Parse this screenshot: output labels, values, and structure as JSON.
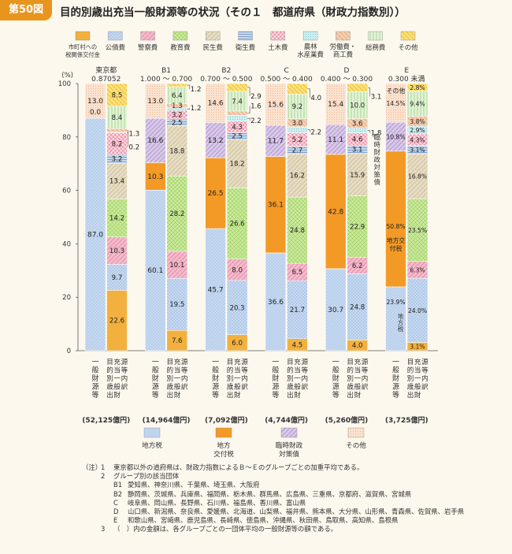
{
  "header": {
    "figure_no": "第50図",
    "title": "目的別歳出充当一般財源等の状況（その１　都道府県（財政力指数別））"
  },
  "colors": {
    "tax_distribution": "#f2b13f",
    "debt": "#c6d9f0",
    "police": "#f4bccd",
    "education": "#b6de7c",
    "welfare": "#ddd3b8",
    "health": "#b8cde4",
    "civil": "#f7c7d2",
    "agri": "#bfe7ea",
    "labor": "#f2bf9b",
    "general": "#d9edc8",
    "other": "#f5cf3f",
    "local_tax": "#c6d9f0",
    "local_grant": "#f39a26",
    "temp_bond": "#c9b4dd",
    "other_rev": "#f9d6bb"
  },
  "chart_data": {
    "type": "bar",
    "stacked": true,
    "ylabel": "(%)",
    "ylim": [
      0,
      100
    ],
    "yticks": [
      "0",
      "20",
      "40",
      "60",
      "80",
      "100"
    ],
    "groups": [
      {
        "name": "東京都",
        "sub": "0.87052",
        "total": "(52,125億円)",
        "revenue": [
          87.0,
          0,
          0.0,
          13.0
        ],
        "revenue_labels": [
          "87.0",
          "",
          "0.0",
          "13.0"
        ],
        "expenditure": [
          22.6,
          9.7,
          10.3,
          14.2,
          13.4,
          3.2,
          8.2,
          0.2,
          1.3,
          8.4,
          8.5
        ],
        "expenditure_labels": [
          "22.6",
          "9.7",
          "10.3",
          "14.2",
          "13.4",
          "3.2",
          "8.2",
          "0.2",
          "1.3",
          "8.4",
          "8.5"
        ]
      },
      {
        "name": "B1",
        "sub": "1.000 ～ 0.700",
        "total": "(14,964億円)",
        "revenue": [
          60.1,
          10.3,
          16.6,
          13.0
        ],
        "revenue_labels": [
          "60.1",
          "10.3",
          "16.6",
          "13.0"
        ],
        "expenditure": [
          7.6,
          19.5,
          10.1,
          28.2,
          18.8,
          2.5,
          3.2,
          1.2,
          1.3,
          6.4,
          1.2
        ],
        "expenditure_labels": [
          "7.6",
          "19.5",
          "10.1",
          "28.2",
          "18.8",
          "2.5",
          "3.2",
          "1.2",
          "1.3",
          "6.4",
          "1.2"
        ]
      },
      {
        "name": "B2",
        "sub": "0.700 ～ 0.500",
        "total": "(7,092億円)",
        "revenue": [
          45.7,
          26.5,
          13.2,
          14.6
        ],
        "revenue_labels": [
          "45.7",
          "26.5",
          "13.2",
          "14.6"
        ],
        "expenditure": [
          6.0,
          20.3,
          8.0,
          26.6,
          18.2,
          2.5,
          4.3,
          2.2,
          1.6,
          7.4,
          2.9
        ],
        "expenditure_labels": [
          "6.0",
          "20.3",
          "8.0",
          "26.6",
          "18.2",
          "2.5",
          "4.3",
          "2.2",
          "1.6",
          "7.4",
          "2.9"
        ]
      },
      {
        "name": "C",
        "sub": "0.500 ～ 0.400",
        "total": "(4,744億円)",
        "revenue": [
          36.6,
          36.1,
          11.7,
          15.6
        ],
        "revenue_labels": [
          "36.6",
          "36.1",
          "11.7",
          "15.6"
        ],
        "expenditure": [
          4.5,
          21.7,
          6.5,
          24.8,
          16.2,
          2.7,
          5.2,
          2.2,
          3.0,
          9.2,
          4.0
        ],
        "expenditure_labels": [
          "4.5",
          "21.7",
          "6.5",
          "24.8",
          "16.2",
          "2.7",
          "5.2",
          "2.2",
          "3.0",
          "9.2",
          "4.0"
        ]
      },
      {
        "name": "D",
        "sub": "0.400 ～ 0.300",
        "total": "(5,260億円)",
        "revenue": [
          30.7,
          42.8,
          11.1,
          15.4
        ],
        "revenue_labels": [
          "30.7",
          "42.8",
          "11.1",
          "15.4"
        ],
        "expenditure": [
          4.0,
          24.8,
          6.2,
          22.9,
          15.9,
          3.1,
          4.6,
          1.8,
          3.6,
          10.0,
          3.1
        ],
        "expenditure_labels": [
          "4.0",
          "24.8",
          "6.2",
          "22.9",
          "15.9",
          "3.1",
          "4.6",
          "1.8",
          "3.6",
          "10.0",
          "3.1"
        ]
      },
      {
        "name": "E",
        "sub": "0.300 未満",
        "total": "(3,725億円)",
        "revenue": [
          23.9,
          50.8,
          10.8,
          14.5
        ],
        "revenue_labels": [
          "23.9%",
          "50.8%",
          "10.8%",
          "14.5%"
        ],
        "expenditure": [
          3.1,
          24.0,
          6.3,
          23.5,
          16.8,
          3.1,
          4.3,
          2.9,
          3.8,
          9.4,
          2.8
        ],
        "expenditure_labels": [
          "3.1%",
          "24.0%",
          "6.3%",
          "23.5%",
          "16.8%",
          "3.1%",
          "4.3%",
          "2.9%",
          "3.8%",
          "9.4%",
          "2.8%"
        ]
      }
    ],
    "top_expenditure_legend": [
      "市町村への税関係交付金",
      "公債費",
      "警察費",
      "教育費",
      "民生費",
      "衛生費",
      "土木費",
      "農林水産業費",
      "労働費・商工費",
      "総務費",
      "その他"
    ],
    "bottom_revenue_legend": [
      "地方税",
      "地方交付税",
      "臨時財政対策債",
      "その他"
    ],
    "column_labels": {
      "revenue": "一般財源等",
      "expenditure": "目的別歳出充当一般財源等内訳"
    },
    "e_inbar_labels": {
      "local_tax": "地方税",
      "local_grant": "地方交付税",
      "other": "その他"
    },
    "d_rotated_label": "臨時財政対策債"
  },
  "notes": {
    "label": "（注）",
    "n1_num": "1",
    "n1": "東京都以外の道府県は、財政力指数によるＢ～Ｅのグループごとの加重平均である。",
    "n2_num": "2",
    "n2": "グループ別の該当団体",
    "groups": [
      {
        "code": "B1",
        "text": "愛知県、神奈川県、千葉県、埼玉県、大阪府"
      },
      {
        "code": "B2",
        "text": "静岡県、茨城県、兵庫県、福岡県、栃木県、群馬県、広島県、三重県、京都府、滋賀県、宮城県"
      },
      {
        "code": "C",
        "text": "岐阜県、岡山県、長野県、石川県、福島県、香川県、富山県"
      },
      {
        "code": "D",
        "text": "山口県、新潟県、奈良県、愛媛県、北海道、山梨県、福井県、熊本県、大分県、山形県、青森県、佐賀県、岩手県"
      },
      {
        "code": "E",
        "text": "和歌山県、宮崎県、鹿児島県、長崎県、徳島県、沖縄県、秋田県、鳥取県、高知県、島根県"
      }
    ],
    "n3_num": "3",
    "n3": "（　）内の金額は、各グループごとの一団体平均の一般財源等の額である。"
  }
}
